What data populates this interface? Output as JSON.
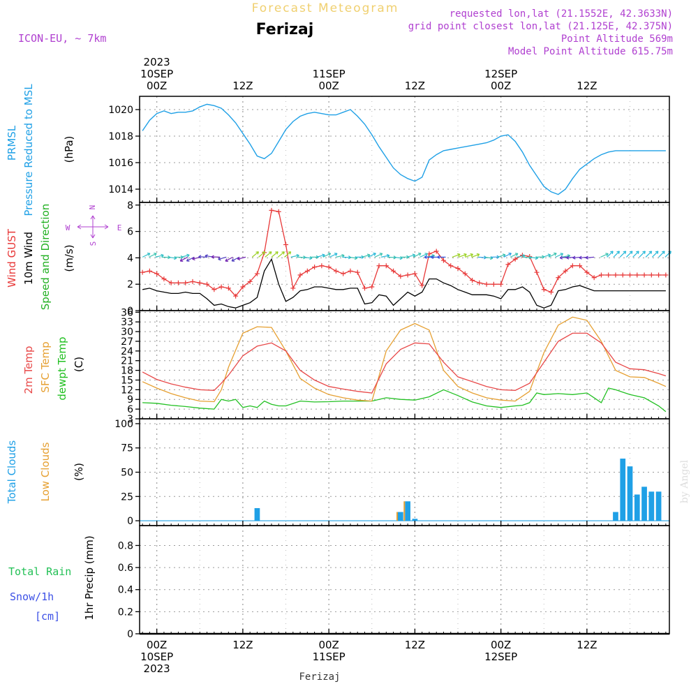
{
  "header": {
    "product": "Forecast Meteogram",
    "location": "Ferizaj",
    "model": "ICON-EU, ~ 7km",
    "requested": "requested lon,lat (21.1552E, 42.3633N)",
    "grid_point": "grid point closest lon,lat (21.125E, 42.375N)",
    "point_altitude": "Point Altitude 569m",
    "model_altitude": "Model Point Altitude 615.75m",
    "footer_location": "Ferizaj",
    "credit": "by Angel"
  },
  "colors": {
    "pressure": "#1fa0e6",
    "gust": "#e83838",
    "wind": "#000000",
    "direction": "#22b022",
    "temp2m": "#e84848",
    "sfc_temp": "#e6a032",
    "dewpt": "#22c022",
    "total_clouds": "#1fa0e6",
    "low_clouds": "#e6a032",
    "rain": "#22c055",
    "snow": "#3c50e6",
    "compass": "#b040d0",
    "header_gold": "#f0d070",
    "header_violet": "#b040d0"
  },
  "time_axis": {
    "top_labels": [
      {
        "t": 0,
        "lines": [
          "2023",
          "10SEP",
          "00Z"
        ]
      },
      {
        "t": 12,
        "lines": [
          "12Z"
        ]
      },
      {
        "t": 24,
        "lines": [
          "11SEP",
          "00Z"
        ]
      },
      {
        "t": 36,
        "lines": [
          "12Z"
        ]
      },
      {
        "t": 48,
        "lines": [
          "12SEP",
          "00Z"
        ]
      },
      {
        "t": 60,
        "lines": [
          "12Z"
        ]
      }
    ],
    "bottom_labels": [
      {
        "t": 0,
        "lines": [
          "00Z",
          "10SEP",
          "2023"
        ]
      },
      {
        "t": 12,
        "lines": [
          "12Z"
        ]
      },
      {
        "t": 24,
        "lines": [
          "00Z",
          "11SEP"
        ]
      },
      {
        "t": 36,
        "lines": [
          "12Z"
        ]
      },
      {
        "t": 48,
        "lines": [
          "00Z",
          "12SEP"
        ]
      },
      {
        "t": 60,
        "lines": [
          "12Z"
        ]
      }
    ],
    "range_hours": [
      -2.4,
      71.5
    ]
  },
  "panels": {
    "pressure": {
      "labels": [
        "PRMSL",
        "Pressure Reduced to MSL"
      ],
      "unit": "(hPa)"
    },
    "wind": {
      "labels": [
        "Wind GUST",
        "10m Wind",
        "Speed and Direction"
      ],
      "unit": "(m/s)",
      "compass": {
        "n": "N",
        "s": "S",
        "w": "W",
        "e": "E"
      }
    },
    "temp": {
      "labels": [
        "2m Temp",
        "SFC Temp",
        "dewpt Temp"
      ],
      "unit": "(C)"
    },
    "clouds": {
      "labels": [
        "Total Clouds",
        "Low Clouds"
      ],
      "unit": "(%)"
    },
    "precip": {
      "labels": [
        "Total Rain",
        "Snow/1h",
        "[cm]"
      ],
      "unit": "1hr Precip (mm)"
    }
  },
  "chart_data": [
    {
      "type": "line",
      "title": "PRMSL Pressure Reduced to MSL",
      "ylabel": "(hPa)",
      "ylim": [
        1013,
        1021
      ],
      "yticks": [
        1014,
        1016,
        1018,
        1020
      ],
      "grid": true,
      "series": [
        {
          "name": "PRMSL",
          "x": [
            -2,
            -1,
            0,
            1,
            2,
            3,
            4,
            5,
            6,
            7,
            8,
            9,
            10,
            11,
            12,
            13,
            14,
            15,
            16,
            17,
            18,
            19,
            20,
            21,
            22,
            23,
            24,
            25,
            26,
            27,
            28,
            29,
            30,
            31,
            32,
            33,
            34,
            35,
            36,
            37,
            38,
            39,
            40,
            41,
            42,
            43,
            44,
            45,
            46,
            47,
            48,
            49,
            50,
            51,
            52,
            53,
            54,
            55,
            56,
            57,
            58,
            59,
            60,
            61,
            62,
            63,
            64,
            65,
            66,
            67,
            68,
            69,
            70,
            71
          ],
          "values": [
            1018.4,
            1019.2,
            1019.7,
            1019.9,
            1019.7,
            1019.8,
            1019.8,
            1019.9,
            1020.2,
            1020.4,
            1020.3,
            1020.1,
            1019.6,
            1019.0,
            1018.2,
            1017.4,
            1016.5,
            1016.3,
            1016.7,
            1017.6,
            1018.5,
            1019.1,
            1019.5,
            1019.7,
            1019.8,
            1019.7,
            1019.6,
            1019.6,
            1019.8,
            1020.0,
            1019.5,
            1018.9,
            1018.1,
            1017.2,
            1016.4,
            1015.6,
            1015.1,
            1014.8,
            1014.6,
            1014.9,
            1016.2,
            1016.6,
            1016.9,
            1017.0,
            1017.1,
            1017.2,
            1017.3,
            1017.4,
            1017.5,
            1017.7,
            1018.0,
            1018.1,
            1017.6,
            1016.8,
            1015.8,
            1015.0,
            1014.2,
            1013.8,
            1013.6,
            1014.0,
            1014.8,
            1015.5,
            1015.9,
            1016.3,
            1016.6,
            1016.8,
            1016.9,
            1016.9,
            1016.9,
            1016.9,
            1016.9,
            1016.9,
            1016.9,
            1016.9
          ]
        }
      ]
    },
    {
      "type": "line",
      "title": "Wind GUST / 10m Wind Speed and Direction",
      "ylabel": "(m/s)",
      "ylim": [
        0,
        8.2
      ],
      "yticks": [
        0,
        2,
        4,
        6,
        8
      ],
      "grid": true,
      "series": [
        {
          "name": "Wind GUST",
          "x": [
            -2,
            -1,
            0,
            1,
            2,
            3,
            4,
            5,
            6,
            7,
            8,
            9,
            10,
            11,
            12,
            13,
            14,
            15,
            16,
            17,
            18,
            19,
            20,
            21,
            22,
            23,
            24,
            25,
            26,
            27,
            28,
            29,
            30,
            31,
            32,
            33,
            34,
            35,
            36,
            37,
            38,
            39,
            40,
            41,
            42,
            43,
            44,
            45,
            46,
            47,
            48,
            49,
            50,
            51,
            52,
            53,
            54,
            55,
            56,
            57,
            58,
            59,
            60,
            61,
            62,
            63,
            64,
            65,
            66,
            67,
            68,
            69,
            70,
            71
          ],
          "values": [
            2.9,
            3.0,
            2.8,
            2.4,
            2.1,
            2.1,
            2.1,
            2.2,
            2.1,
            2.0,
            1.6,
            1.8,
            1.7,
            1.1,
            1.8,
            2.2,
            2.8,
            4.4,
            7.6,
            7.5,
            5.0,
            1.7,
            2.7,
            3.0,
            3.3,
            3.4,
            3.3,
            3.0,
            2.8,
            3.0,
            2.9,
            1.7,
            1.8,
            3.4,
            3.4,
            3.0,
            2.6,
            2.7,
            2.8,
            1.9,
            4.3,
            4.5,
            3.8,
            3.4,
            3.2,
            2.8,
            2.3,
            2.1,
            2.0,
            2.0,
            2.0,
            3.5,
            3.9,
            4.2,
            4.1,
            2.9,
            1.6,
            1.4,
            2.5,
            3.0,
            3.4,
            3.4,
            2.9,
            2.5,
            2.7,
            2.7,
            2.7,
            2.7,
            2.7,
            2.7,
            2.7,
            2.7,
            2.7,
            2.7
          ]
        },
        {
          "name": "10m Wind",
          "x": [
            -2,
            -1,
            0,
            1,
            2,
            3,
            4,
            5,
            6,
            7,
            8,
            9,
            10,
            11,
            12,
            13,
            14,
            15,
            16,
            17,
            18,
            19,
            20,
            21,
            22,
            23,
            24,
            25,
            26,
            27,
            28,
            29,
            30,
            31,
            32,
            33,
            34,
            35,
            36,
            37,
            38,
            39,
            40,
            41,
            42,
            43,
            44,
            45,
            46,
            47,
            48,
            49,
            50,
            51,
            52,
            53,
            54,
            55,
            56,
            57,
            58,
            59,
            60,
            61,
            62,
            63,
            64,
            65,
            66,
            67,
            68,
            69,
            70,
            71
          ],
          "values": [
            1.6,
            1.7,
            1.5,
            1.4,
            1.3,
            1.3,
            1.4,
            1.3,
            1.3,
            0.9,
            0.4,
            0.5,
            0.3,
            0.2,
            0.4,
            0.6,
            1.0,
            3.0,
            3.9,
            2.0,
            0.7,
            1.0,
            1.5,
            1.6,
            1.8,
            1.8,
            1.7,
            1.6,
            1.6,
            1.7,
            1.7,
            0.5,
            0.6,
            1.2,
            1.1,
            0.4,
            0.9,
            1.4,
            1.1,
            1.4,
            2.4,
            2.4,
            2.1,
            1.9,
            1.6,
            1.4,
            1.2,
            1.2,
            1.2,
            1.1,
            0.9,
            1.6,
            1.6,
            1.8,
            1.4,
            0.4,
            0.2,
            0.4,
            1.5,
            1.6,
            1.8,
            1.9,
            1.7,
            1.5,
            1.5,
            1.5,
            1.5,
            1.5,
            1.5,
            1.5,
            1.5,
            1.5,
            1.5,
            1.5
          ]
        }
      ]
    },
    {
      "type": "line",
      "title": "2m Temp / SFC Temp / dewpt Temp",
      "ylabel": "(C)",
      "ylim": [
        3,
        36.5
      ],
      "yticks": [
        3,
        6,
        9,
        12,
        15,
        18,
        21,
        24,
        27,
        30,
        33,
        36
      ],
      "grid": true,
      "series": [
        {
          "name": "2m Temp",
          "x": [
            -2,
            0,
            2,
            4,
            6,
            8,
            9,
            10,
            12,
            14,
            16,
            18,
            20,
            22,
            24,
            26,
            28,
            30,
            32,
            34,
            36,
            38,
            40,
            42,
            44,
            46,
            48,
            50,
            52,
            54,
            56,
            58,
            60,
            62,
            64,
            66,
            68,
            70,
            71
          ],
          "values": [
            17.5,
            15.2,
            13.8,
            12.8,
            12.0,
            11.8,
            14.0,
            16.5,
            22.5,
            25.5,
            26.5,
            24.0,
            18.0,
            15.0,
            13.0,
            12.2,
            11.5,
            11.0,
            20.0,
            24.5,
            26.5,
            26.2,
            20.5,
            16.0,
            14.5,
            13.0,
            12.0,
            11.8,
            14.0,
            20.5,
            27.0,
            29.5,
            29.5,
            26.5,
            20.5,
            18.5,
            18.2,
            17.0,
            16.3
          ]
        },
        {
          "name": "SFC Temp",
          "x": [
            -2,
            0,
            2,
            4,
            6,
            8,
            9,
            10,
            12,
            14,
            16,
            18,
            20,
            22,
            24,
            26,
            28,
            30,
            32,
            34,
            36,
            38,
            40,
            42,
            44,
            46,
            48,
            50,
            52,
            54,
            56,
            58,
            60,
            62,
            64,
            66,
            68,
            70,
            71
          ],
          "values": [
            14.5,
            12.5,
            10.8,
            9.5,
            8.5,
            8.3,
            12.0,
            19.0,
            29.5,
            31.5,
            31.3,
            24.0,
            15.5,
            12.5,
            10.5,
            9.5,
            8.8,
            8.5,
            24.0,
            30.5,
            32.5,
            30.5,
            18.0,
            13.0,
            11.0,
            9.5,
            8.8,
            8.5,
            11.5,
            23.5,
            32.0,
            34.5,
            33.5,
            27.0,
            18.0,
            16.0,
            15.8,
            14.0,
            13.0
          ]
        },
        {
          "name": "dewpt Temp",
          "x": [
            -2,
            0,
            2,
            4,
            6,
            8,
            9,
            10,
            11,
            12,
            13,
            14,
            15,
            16,
            17,
            18,
            20,
            22,
            24,
            26,
            28,
            30,
            32,
            34,
            36,
            38,
            40,
            42,
            44,
            46,
            48,
            50,
            51,
            52,
            53,
            54,
            56,
            58,
            60,
            61,
            62,
            63,
            64,
            66,
            68,
            70,
            71
          ],
          "values": [
            8.0,
            7.8,
            7.2,
            6.8,
            6.3,
            6.0,
            9.0,
            8.5,
            9.0,
            6.5,
            7.0,
            6.5,
            8.5,
            7.5,
            7.0,
            7.0,
            8.5,
            8.2,
            8.3,
            8.5,
            8.5,
            8.5,
            9.5,
            9.0,
            8.8,
            9.8,
            12.0,
            10.2,
            8.2,
            7.0,
            6.5,
            7.0,
            7.2,
            8.0,
            11.0,
            10.5,
            10.8,
            10.5,
            11.0,
            9.5,
            8.0,
            12.5,
            12.0,
            10.5,
            9.5,
            7.0,
            5.2
          ]
        }
      ]
    },
    {
      "type": "bar",
      "title": "Total Clouds / Low Clouds",
      "ylabel": "(%)",
      "ylim": [
        -5,
        105
      ],
      "yticks": [
        0,
        25,
        50,
        75,
        100
      ],
      "grid": true,
      "series": [
        {
          "name": "Total Clouds",
          "x": [
            14,
            34,
            35,
            36,
            64,
            65,
            66,
            67,
            68,
            69,
            70
          ],
          "values": [
            13,
            9,
            20,
            2,
            9,
            64,
            56,
            27,
            35,
            30,
            30
          ]
        },
        {
          "name": "Low Clouds",
          "x": [
            34,
            35
          ],
          "values": [
            9,
            20
          ]
        }
      ]
    },
    {
      "type": "bar",
      "title": "Total Rain / Snow/1h",
      "ylabel": "1hr Precip (mm)",
      "ylim": [
        0,
        0.98
      ],
      "yticks": [
        0,
        0.2,
        0.4,
        0.6,
        0.8
      ],
      "grid": true,
      "series": [
        {
          "name": "Total Rain",
          "x": [],
          "values": []
        },
        {
          "name": "Snow/1h",
          "x": [],
          "values": []
        }
      ]
    }
  ]
}
